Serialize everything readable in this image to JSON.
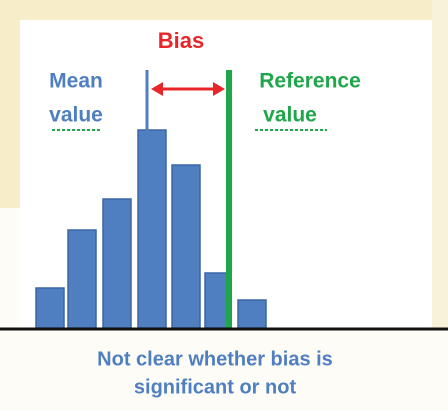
{
  "title": "Bias",
  "mean_label": {
    "line1": "Mean",
    "line2": "value"
  },
  "reference_label": {
    "line1": "Reference",
    "line2": "value"
  },
  "caption": {
    "line1": "Not clear whether bias is",
    "line2": "significant or not"
  }
}
